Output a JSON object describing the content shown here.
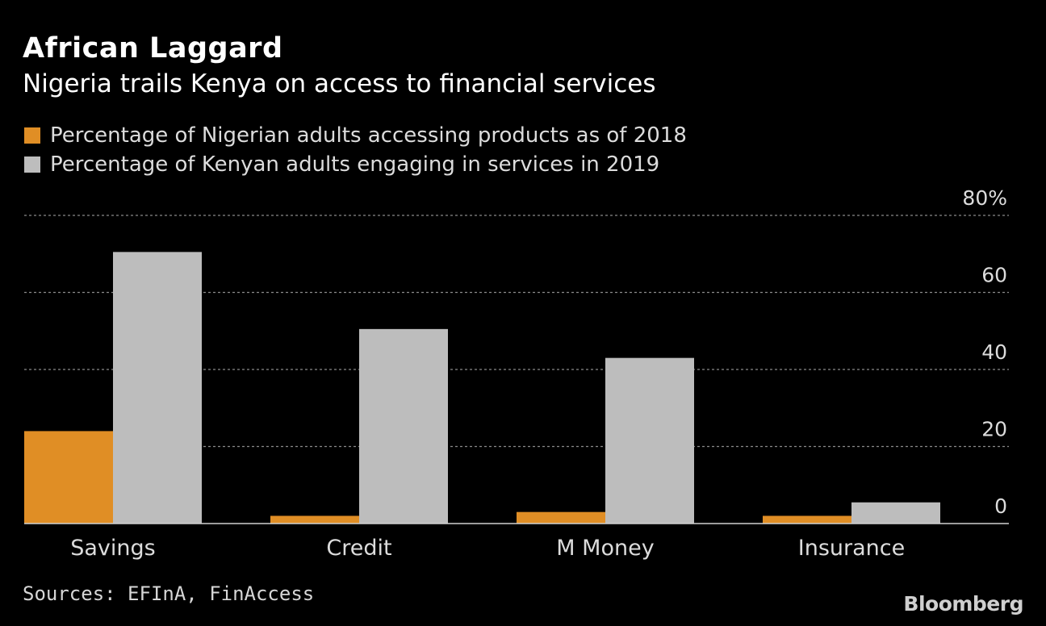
{
  "chart_data": {
    "type": "bar",
    "title": "African Laggard",
    "subtitle": "Nigeria trails Kenya on access to financial services",
    "categories": [
      "Savings",
      "Credit",
      "M Money",
      "Insurance"
    ],
    "series": [
      {
        "name": "Percentage of Nigerian adults accessing products as of 2018",
        "values": [
          24,
          2,
          3,
          2
        ],
        "color": "#e08e25"
      },
      {
        "name": "Percentage of Kenyan adults engaging in services in 2019",
        "values": [
          70.5,
          50.5,
          43,
          5.5
        ],
        "color": "#bdbdbd"
      }
    ],
    "ylim": [
      0,
      80
    ],
    "yticks": [
      0,
      20,
      40,
      60,
      80
    ],
    "ytick_labels": [
      "0",
      "20",
      "40",
      "60",
      "80%"
    ],
    "xlabel": "",
    "ylabel": "",
    "grid": true,
    "legend_position": "top-left",
    "axis_position": "right"
  },
  "source": "Sources: EFInA, FinAccess",
  "brand": "Bloomberg"
}
